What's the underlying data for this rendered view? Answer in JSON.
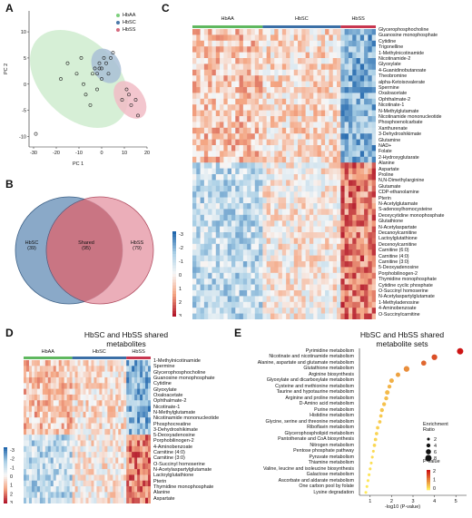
{
  "panel_letters": {
    "a": "A",
    "b": "B",
    "c": "C",
    "d": "D",
    "e": "E"
  },
  "panel_a": {
    "xlabel": "PC 1",
    "ylabel": "PC 2",
    "xticks": [
      "-30",
      "-20",
      "-10",
      "0",
      "10",
      "20"
    ],
    "yticks": [
      "10",
      "5",
      "0",
      "-5",
      "-10"
    ],
    "legend": [
      {
        "label": "HbAA",
        "color": "#7ccf7c"
      },
      {
        "label": "HbSC",
        "color": "#4a78a8"
      },
      {
        "label": "HbSS",
        "color": "#d46a7e"
      }
    ],
    "chart_data": {
      "type": "scatter",
      "xlabel": "PC 1",
      "ylabel": "PC 2",
      "xlim": [
        -32,
        20
      ],
      "ylim": [
        -12,
        14
      ],
      "series": [
        {
          "name": "HbAA",
          "points": [
            [
              -29,
              -9.5
            ],
            [
              -18,
              1
            ],
            [
              -15,
              4
            ],
            [
              -11,
              2
            ],
            [
              -9,
              5
            ],
            [
              -8,
              0
            ],
            [
              -7,
              -2
            ],
            [
              -5,
              -4
            ],
            [
              -4,
              2
            ],
            [
              -3,
              3
            ],
            [
              -2,
              -1
            ],
            [
              -1,
              3
            ],
            [
              0,
              1
            ]
          ]
        },
        {
          "name": "HbSC",
          "points": [
            [
              -2,
              2
            ],
            [
              -1,
              4
            ],
            [
              0,
              3
            ],
            [
              1,
              5
            ],
            [
              2,
              4
            ],
            [
              3,
              2
            ],
            [
              4,
              5
            ],
            [
              5,
              6
            ]
          ]
        },
        {
          "name": "HbSS",
          "points": [
            [
              9,
              -3
            ],
            [
              11,
              -1
            ],
            [
              12,
              -2
            ],
            [
              13,
              -4
            ],
            [
              15,
              -3
            ],
            [
              16,
              -6
            ]
          ]
        }
      ]
    }
  },
  "panel_b": {
    "left_label": "HbSC",
    "left_count": "(39)",
    "mid_label": "Shared",
    "mid_count": "(95)",
    "right_label": "HbSS",
    "right_count": "(79)"
  },
  "panel_c": {
    "groups": [
      "HbAA",
      "HbSC",
      "HbSS"
    ],
    "colorbar_ticks": [
      "-3",
      "-2",
      "-1",
      "0",
      "1",
      "2",
      "3"
    ],
    "rows": [
      "Glycerophosphocholine",
      "Guanosine monophosphate",
      "Cytidine",
      "Trigonelline",
      "1-Methylnicotinamide",
      "Nicotinamide-2",
      "Glyoxylate",
      "4-Guanidinobutanoate",
      "Theobromine",
      "alpha-Ketoisovalerate",
      "Spermine",
      "Oxaloacetate",
      "Ophthalmate-2",
      "Nicotinate-1",
      "N-Methylglutamate",
      "Nicotinamide mononucleotide",
      "Phosphoenolcarbate",
      "Xanthurenate",
      "3-Dehydroshikimate",
      "Glutamine",
      "NAD+",
      "Folate",
      "2-Hydroxyglutarate",
      "Alanine",
      "Aspartate",
      "Proline",
      "N,N-Dimethylarginine",
      "Glutamate",
      "CDP-ethanolamine",
      "Pterin",
      "N-Acetylglutamate",
      "S-adenosylhomocysteine",
      "Deoxycytidine monophosphate",
      "Glutathione",
      "N-Acetylaspartate",
      "Decanoylcarnitine",
      "Lactoylglutathione",
      "Decenoylcarnitine",
      "Carnitine (6:0)",
      "Carnitine (4:0)",
      "Carnitine (3:0)",
      "5-Deoxyadenosine",
      "Porphobilinogen-2",
      "Thymidine monophosphate",
      "Cytidine cyclic phosphate",
      "O-Succinyl homoserine",
      "N-Acetylaspartylglutamate",
      "1-Methyladenosine",
      "4-Aminobenzoate",
      "O-Succinylcarnitine"
    ]
  },
  "panel_d": {
    "title": "HbSC and HbSS shared metabolites",
    "groups": [
      "HbAA",
      "HbSC",
      "HbSS"
    ],
    "colorbar_ticks": [
      "-3",
      "-2",
      "-1",
      "0",
      "1",
      "2",
      "3"
    ],
    "rows": [
      "1-Methylnicotinamide",
      "Spermine",
      "Glycerophosphocholine",
      "Guanosine monophosphate",
      "Cytidine",
      "Glyoxylate",
      "Oxaloacetate",
      "Ophthalmate-2",
      "Nicotinate-1",
      "N-Methylglutamate",
      "Nicotinamide mononucleotide",
      "Phosphocreatine",
      "3-Dehydroshikimate",
      "5-Deoxyadenosine",
      "Porphobilinogen-2",
      "4-Aminobenzoate",
      "Carnitine (4:0)",
      "Carnitine (3:0)",
      "O-Succinyl homoserine",
      "N-Acetylaspartylglutamate",
      "Lactoylglutathione",
      "Pterin",
      "Thymidine monophosphate",
      "Alanine",
      "Aspartate"
    ]
  },
  "panel_e": {
    "title": "HbSC and HbSS shared metabolite sets",
    "xlabel": "-log10 (P-value)",
    "xticks": [
      "1",
      "2",
      "3",
      "4",
      "5"
    ],
    "size_legend_title": "Enrichment Ratio",
    "size_legend": [
      "2",
      "4",
      "6",
      "8"
    ],
    "color_legend_title": "P-value",
    "color_legend_ticks": [
      "2",
      "1",
      "0"
    ],
    "chart_data": {
      "type": "scatter",
      "xlabel": "-log10 (P-value)",
      "xlim": [
        0.5,
        5.5
      ],
      "categories": [
        "Pyrimidine metabolism",
        "Nicotinate and nicotinamide metabolism",
        "Alanine, aspartate and glutamate metabolism",
        "Glutathione metabolism",
        "Arginine biosynthesis",
        "Glyoxylate and dicarboxylate metabolism",
        "Cysteine and methionine metabolism",
        "Taurine and hypotaurine metabolism",
        "Arginine and proline metabolism",
        "D-Amino acid metabolism",
        "Purine metabolism",
        "Histidine metabolism",
        "Glycine, serine and threonine metabolism",
        "Riboflavin metabolism",
        "Glycerophospholipid metabolism",
        "Pantothenate and CoA biosynthesis",
        "Nitrogen metabolism",
        "Pentose phosphate pathway",
        "Pyruvate metabolism",
        "Thiamine metabolism",
        "Valine, leucine and isoleucine biosynthesis",
        "Galactose metabolism",
        "Ascorbate and aldarate metabolism",
        "One carbon pool by folate",
        "Lysine degradation"
      ],
      "values": [
        5.2,
        4.0,
        3.5,
        2.7,
        2.3,
        2.0,
        1.9,
        1.8,
        1.75,
        1.65,
        1.55,
        1.5,
        1.45,
        1.35,
        1.3,
        1.25,
        1.2,
        1.15,
        1.1,
        1.05,
        1.0,
        0.95,
        0.9,
        0.85,
        0.8
      ],
      "enrichment": [
        8,
        7,
        6,
        7,
        5,
        5,
        4,
        5,
        4,
        4,
        4,
        3,
        3,
        3,
        3,
        3,
        3,
        2,
        2,
        2,
        2,
        2,
        2,
        2,
        2
      ]
    }
  }
}
